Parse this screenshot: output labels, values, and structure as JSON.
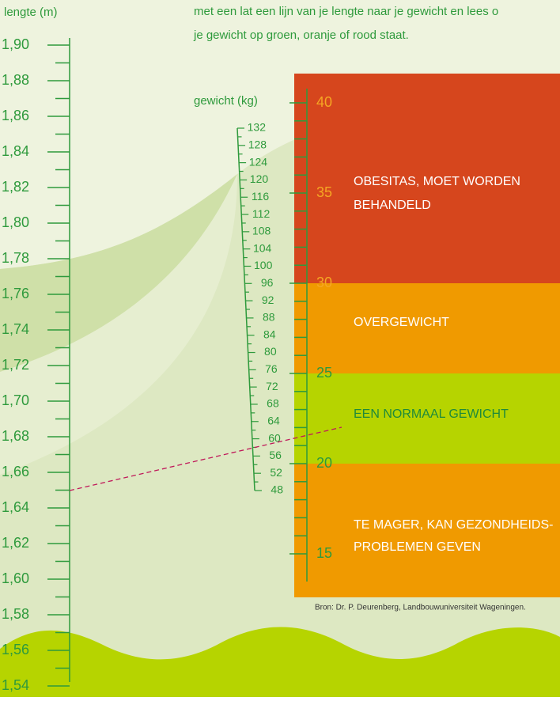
{
  "intro": {
    "lines": [
      "met een lat een lijn van je lengte naar je gewicht en lees o",
      "je gewicht op groen, oranje of rood staat."
    ]
  },
  "length_scale": {
    "title": "lengte (m)",
    "labels": [
      "1,90",
      "1,88",
      "1,86",
      "1,84",
      "1,82",
      "1,80",
      "1,78",
      "1,76",
      "1,74",
      "1,72",
      "1,70",
      "1,68",
      "1,66",
      "1,64",
      "1,62",
      "1,60",
      "1,58",
      "1,56",
      "1,54"
    ]
  },
  "weight_scale": {
    "title": "gewicht (kg)",
    "labels": [
      "132",
      "128",
      "124",
      "120",
      "116",
      "112",
      "108",
      "104",
      "100",
      "96",
      "92",
      "88",
      "84",
      "80",
      "76",
      "72",
      "68",
      "64",
      "60",
      "56",
      "52",
      "48"
    ]
  },
  "bmi_scale": {
    "labels": [
      "40",
      "35",
      "30",
      "25",
      "20",
      "15"
    ]
  },
  "zones": [
    {
      "lines": [
        "OBESITAS, MOET WORDEN",
        "BEHANDELD"
      ]
    },
    {
      "lines": [
        "OVERGEWICHT"
      ]
    },
    {
      "lines": [
        "EEN NORMAAL GEWICHT"
      ]
    },
    {
      "lines": [
        "TE MAGER, KAN GEZONDHEIDS-",
        "PROBLEMEN GEVEN"
      ]
    }
  ],
  "source": "Bron: Dr. P. Deurenberg, Landbouwuniversiteit Wageningen."
}
